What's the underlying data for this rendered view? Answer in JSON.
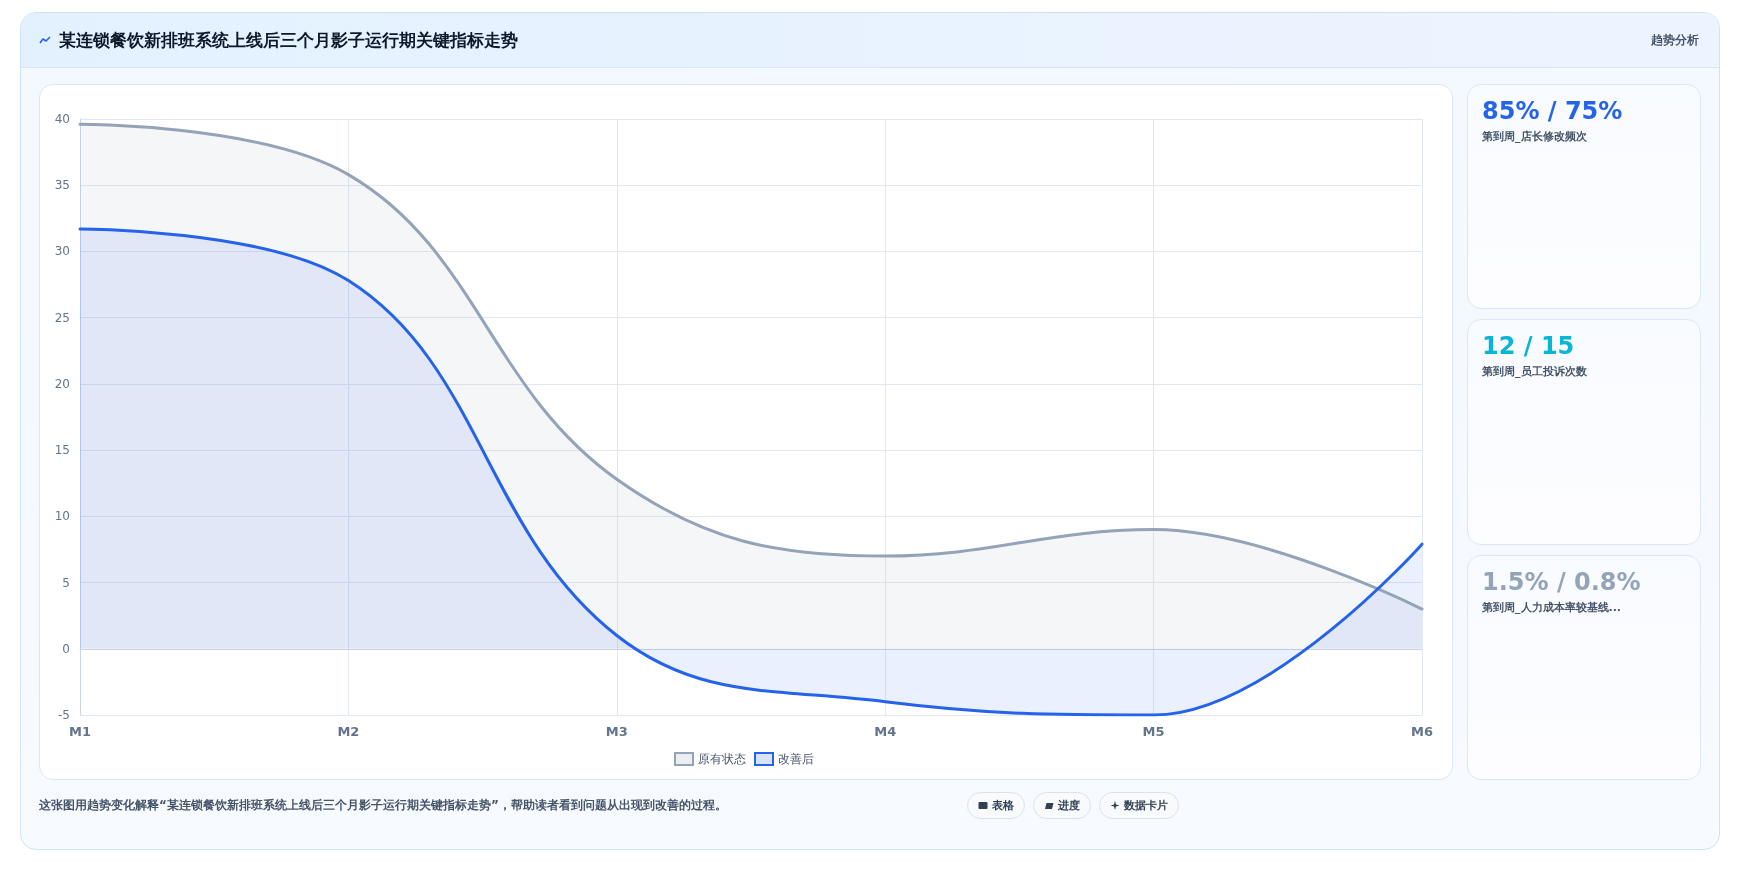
{
  "chart_data": {
    "type": "area",
    "title": "某连锁餐饮新排班系统上线后三个月影子运行期关键指标走势",
    "subtitle": "趋势分析",
    "categories": [
      "M1",
      "M2",
      "M3",
      "M4",
      "M5",
      "M6"
    ],
    "series": [
      {
        "name": "原有状态",
        "color": "#94a3b8",
        "values": [
          39.6,
          35.8,
          12.8,
          7,
          9,
          3
        ]
      },
      {
        "name": "改善后",
        "color": "#2563eb",
        "values": [
          31.7,
          27.8,
          1,
          -4,
          -5,
          7.9
        ]
      }
    ],
    "ylim": [
      -5,
      40
    ],
    "yticks": [
      -5,
      0,
      5,
      10,
      15,
      20,
      25,
      30,
      35,
      40
    ],
    "grid": true,
    "legend": "bottom",
    "marker": "none",
    "line_style": "solid",
    "annotations": [
      "85% / 75%",
      "第到周_店长修改频次",
      "12 / 15",
      "第到周_员工投诉次数",
      "1.5% / 0.8%",
      "第到周_人力成本率较基线...",
      "这张图用趋势变化解释“某连锁餐饮新排班系统上线后三个月影子运行期关键指标走势”，帮助读者看到问题从出现到改善的过程。",
      "表格",
      "进度",
      "数据卡片"
    ]
  }
}
